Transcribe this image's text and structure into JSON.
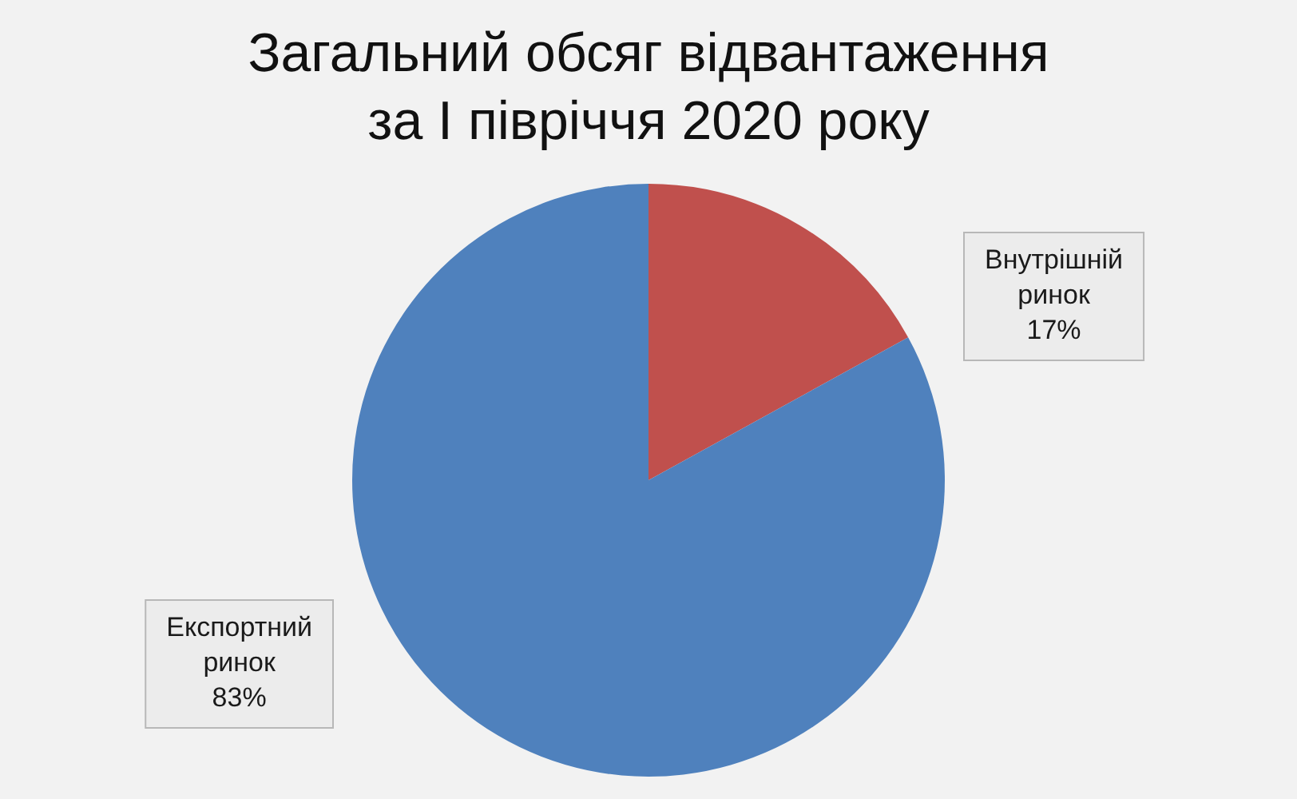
{
  "chart_data": {
    "type": "pie",
    "title": "Загальний обсяг відвантаження за І півріччя 2020 року",
    "categories": [
      "Внутрішній ринок",
      "Експортний ринок"
    ],
    "values": [
      17,
      83
    ],
    "colors": [
      "#c0504d",
      "#4f81bd"
    ],
    "value_labels": [
      "17%",
      "83%"
    ]
  }
}
